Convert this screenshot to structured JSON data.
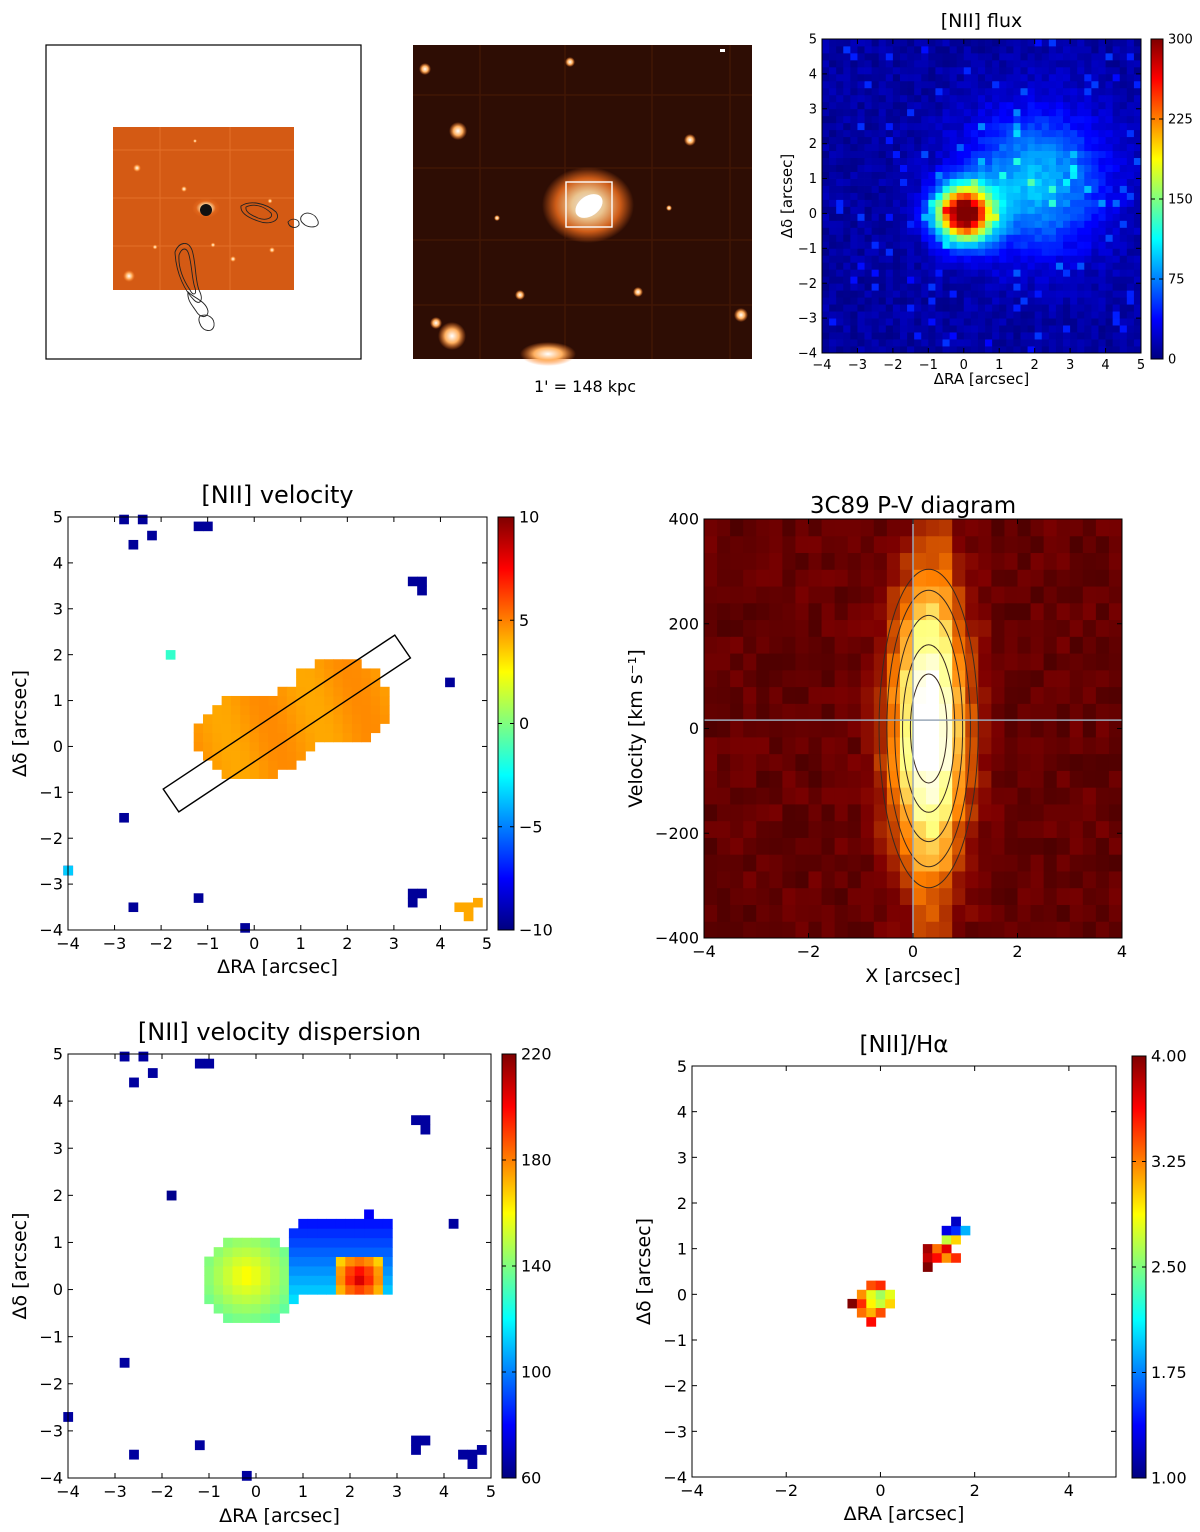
{
  "figure": {
    "scale_label": "1' = 148 kpc"
  },
  "colors": {
    "jet_low": "#00007f",
    "jet_mid": "#7fff7f",
    "jet_high": "#7f0000",
    "afmhot_dark": "#3a1206",
    "afmhot_bright": "#fff4e6",
    "velocity_fill": "#ffa500"
  },
  "chart_data": [
    {
      "id": "nii-flux",
      "type": "heatmap",
      "title": "[NII] flux",
      "xlabel": "ΔRA [arcsec]",
      "ylabel": "Δδ [arcsec]",
      "xlim": [
        -4,
        5
      ],
      "ylim": [
        -4,
        5
      ],
      "xticks": [
        "−4",
        "−3",
        "−2",
        "−1",
        "0",
        "1",
        "2",
        "3",
        "4",
        "5"
      ],
      "yticks": [
        "−4",
        "−3",
        "−2",
        "−1",
        "0",
        "1",
        "2",
        "3",
        "4",
        "5"
      ],
      "colorbar": {
        "range": [
          0,
          300
        ],
        "ticks": [
          "0",
          "75",
          "150",
          "225",
          "300"
        ]
      },
      "components": [
        {
          "name": "nucleus",
          "x": 0.0,
          "y": 0.0,
          "peak": 300,
          "sigma": 0.55
        },
        {
          "name": "extended emission",
          "x": 2.0,
          "y": 0.9,
          "peak": 85,
          "sigma": 1.4
        }
      ],
      "background": 10
    },
    {
      "id": "nii-velocity",
      "type": "heatmap",
      "title": "[NII] velocity",
      "xlabel": "ΔRA [arcsec]",
      "ylabel": "Δδ [arcsec]",
      "xlim": [
        -4,
        5
      ],
      "ylim": [
        -4,
        5
      ],
      "xticks": [
        "−4",
        "−3",
        "−2",
        "−1",
        "0",
        "1",
        "2",
        "3",
        "4",
        "5"
      ],
      "yticks": [
        "−4",
        "−3",
        "−2",
        "−1",
        "0",
        "1",
        "2",
        "3",
        "4",
        "5"
      ],
      "colorbar": {
        "range": [
          -10,
          10
        ],
        "ticks": [
          "−10",
          "−5",
          "0",
          "5",
          "10"
        ]
      },
      "body_value": 4.5,
      "slit": {
        "center": [
          0.7,
          0.5
        ],
        "length": 6.0,
        "width": 0.6,
        "angle_deg": 34
      }
    },
    {
      "id": "pv-diagram",
      "type": "heatmap",
      "title": "3C89 P-V diagram",
      "xlabel": "X [arcsec]",
      "ylabel": "Velocity [km s⁻¹]",
      "xlim": [
        -4,
        4
      ],
      "ylim": [
        -500,
        500
      ],
      "xticks": [
        "−4",
        "−2",
        "0",
        "2",
        "4"
      ],
      "yticks": [
        "−400",
        "−200",
        "0",
        "200",
        "400"
      ],
      "ridge": {
        "x": 0.3,
        "v": 0,
        "sigma_x": 0.5,
        "sigma_v": 230
      }
    },
    {
      "id": "nii-dispersion",
      "type": "heatmap",
      "title": "[NII] velocity dispersion",
      "xlabel": "ΔRA [arcsec]",
      "ylabel": "Δδ [arcsec]",
      "xlim": [
        -4,
        5
      ],
      "ylim": [
        -4,
        5
      ],
      "xticks": [
        "−4",
        "−3",
        "−2",
        "−1",
        "0",
        "1",
        "2",
        "3",
        "4",
        "5"
      ],
      "yticks": [
        "−4",
        "−3",
        "−2",
        "−1",
        "0",
        "1",
        "2",
        "3",
        "4",
        "5"
      ],
      "colorbar": {
        "range": [
          60,
          220
        ],
        "ticks": [
          "60",
          "100",
          "140",
          "180",
          "220"
        ]
      },
      "nucleus_value": 150,
      "extension_value": 95,
      "hotspot": {
        "x": 2.2,
        "y": 0.25,
        "value": 210
      }
    },
    {
      "id": "nii-halpha",
      "type": "heatmap",
      "title": "[NII]/Hα",
      "xlabel": "ΔRA [arcsec]",
      "ylabel": "Δδ [arcsec]",
      "xlim": [
        -4,
        5
      ],
      "ylim": [
        -4,
        5
      ],
      "xticks": [
        "−4",
        "−2",
        "0",
        "2",
        "4"
      ],
      "yticks": [
        "−4",
        "−3",
        "−2",
        "−1",
        "0",
        "1",
        "2",
        "3",
        "4",
        "5"
      ],
      "colorbar": {
        "range": [
          1.0,
          4.0
        ],
        "ticks": [
          "1.00",
          "1.75",
          "2.50",
          "3.25",
          "4.00"
        ]
      },
      "pixels": [
        {
          "x": -0.6,
          "y": -0.2,
          "v": 4.0
        },
        {
          "x": -0.4,
          "y": -0.2,
          "v": 3.5
        },
        {
          "x": -0.2,
          "y": -0.2,
          "v": 2.9
        },
        {
          "x": 0.0,
          "y": -0.2,
          "v": 2.7
        },
        {
          "x": 0.2,
          "y": -0.2,
          "v": 3.0
        },
        {
          "x": -0.4,
          "y": 0.0,
          "v": 3.2
        },
        {
          "x": -0.2,
          "y": 0.0,
          "v": 2.8
        },
        {
          "x": 0.0,
          "y": 0.0,
          "v": 2.6
        },
        {
          "x": 0.2,
          "y": 0.0,
          "v": 2.8
        },
        {
          "x": -0.2,
          "y": 0.2,
          "v": 3.4
        },
        {
          "x": 0.0,
          "y": 0.2,
          "v": 3.5
        },
        {
          "x": -0.4,
          "y": -0.4,
          "v": 3.3
        },
        {
          "x": -0.2,
          "y": -0.4,
          "v": 3.1
        },
        {
          "x": 0.0,
          "y": -0.4,
          "v": 3.4
        },
        {
          "x": -0.2,
          "y": -0.6,
          "v": 3.6
        },
        {
          "x": 1.0,
          "y": 1.0,
          "v": 3.9
        },
        {
          "x": 1.0,
          "y": 0.8,
          "v": 3.8
        },
        {
          "x": 1.0,
          "y": 0.6,
          "v": 4.0
        },
        {
          "x": 1.2,
          "y": 1.0,
          "v": 3.3
        },
        {
          "x": 1.2,
          "y": 0.8,
          "v": 3.6
        },
        {
          "x": 1.4,
          "y": 1.0,
          "v": 3.7
        },
        {
          "x": 1.4,
          "y": 0.8,
          "v": 3.2
        },
        {
          "x": 1.6,
          "y": 0.8,
          "v": 3.5
        },
        {
          "x": 1.4,
          "y": 1.2,
          "v": 2.7
        },
        {
          "x": 1.6,
          "y": 1.2,
          "v": 3.0
        },
        {
          "x": 1.4,
          "y": 1.4,
          "v": 1.3
        },
        {
          "x": 1.6,
          "y": 1.4,
          "v": 1.5
        },
        {
          "x": 1.8,
          "y": 1.4,
          "v": 1.9
        },
        {
          "x": 1.6,
          "y": 1.6,
          "v": 1.2
        }
      ]
    }
  ]
}
